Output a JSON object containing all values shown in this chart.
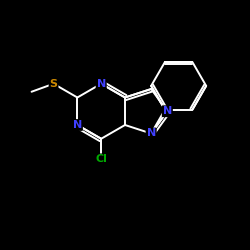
{
  "background_color": "#000000",
  "line_color": "#ffffff",
  "atom_colors": {
    "N": "#4040ff",
    "S": "#cc8800",
    "Cl": "#00aa00"
  },
  "bond_lw": 1.4,
  "font_size": 8.0
}
